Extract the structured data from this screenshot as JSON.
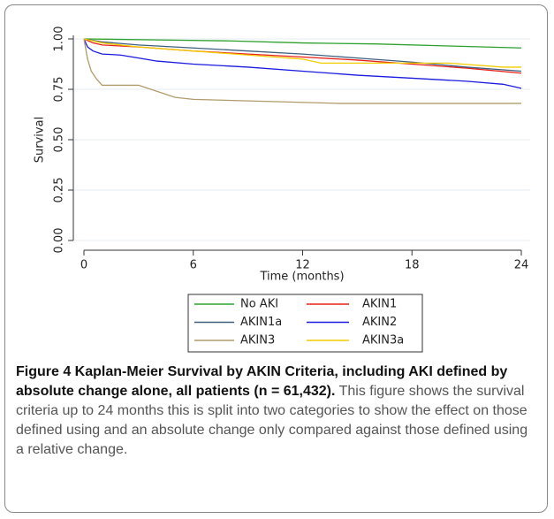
{
  "chart_data": {
    "type": "line",
    "xlabel": "Time (months)",
    "ylabel": "Survival",
    "xlim": [
      0,
      24
    ],
    "xticks": [
      0,
      6,
      12,
      18,
      24
    ],
    "ylim": [
      0,
      1
    ],
    "yticks": [
      {
        "value": 0,
        "label": "0.00"
      },
      {
        "value": 0.25,
        "label": "0.25"
      },
      {
        "value": 0.5,
        "label": "0.50"
      },
      {
        "value": 0.75,
        "label": "0.75"
      },
      {
        "value": 1,
        "label": "1.00"
      }
    ],
    "grid": true,
    "series": [
      {
        "name": "No AKI",
        "color": "#2ca02c",
        "x": [
          0,
          4,
          8,
          12,
          16,
          20,
          24
        ],
        "values": [
          1.0,
          0.995,
          0.99,
          0.98,
          0.975,
          0.965,
          0.955
        ]
      },
      {
        "name": "AKIN1",
        "color": "#e8201a",
        "x": [
          0,
          0.5,
          1,
          3,
          6,
          9,
          12,
          15,
          18,
          21,
          24
        ],
        "values": [
          1.0,
          0.98,
          0.97,
          0.96,
          0.94,
          0.925,
          0.91,
          0.895,
          0.875,
          0.855,
          0.83
        ]
      },
      {
        "name": "AKIN1a",
        "color": "#3f5f7f",
        "x": [
          0,
          1,
          3,
          6,
          9,
          12,
          15,
          18,
          21,
          24
        ],
        "values": [
          1.0,
          0.985,
          0.97,
          0.955,
          0.94,
          0.925,
          0.905,
          0.885,
          0.86,
          0.84
        ]
      },
      {
        "name": "AKIN2",
        "color": "#1a1ae0",
        "x": [
          0,
          0.2,
          0.5,
          1,
          2,
          3,
          4,
          6,
          9,
          12,
          15,
          18,
          21,
          23,
          24
        ],
        "values": [
          1.0,
          0.96,
          0.94,
          0.925,
          0.92,
          0.905,
          0.89,
          0.875,
          0.86,
          0.84,
          0.82,
          0.805,
          0.79,
          0.775,
          0.755
        ]
      },
      {
        "name": "AKIN3",
        "color": "#b09c6a",
        "x": [
          0,
          0.2,
          0.4,
          0.7,
          1,
          3,
          4,
          5,
          6,
          14,
          24
        ],
        "values": [
          1.0,
          0.9,
          0.84,
          0.8,
          0.77,
          0.77,
          0.74,
          0.71,
          0.7,
          0.68,
          0.68
        ]
      },
      {
        "name": "AKIN3a",
        "color": "#f2cc00",
        "x": [
          0,
          1,
          3,
          6,
          9,
          12,
          13,
          20,
          23,
          24
        ],
        "values": [
          1.0,
          0.98,
          0.96,
          0.94,
          0.92,
          0.9,
          0.88,
          0.88,
          0.86,
          0.86
        ]
      }
    ]
  },
  "caption": {
    "title": "Figure 4 Kaplan-Meier Survival by AKIN Criteria, including AKI defined by absolute change alone, all patients (n = 61,432).",
    "text": "This figure shows the survival criteria up to 24 months this is split into two categories to show the effect on those defined using and an absolute change only compared against those defined using a relative change."
  }
}
